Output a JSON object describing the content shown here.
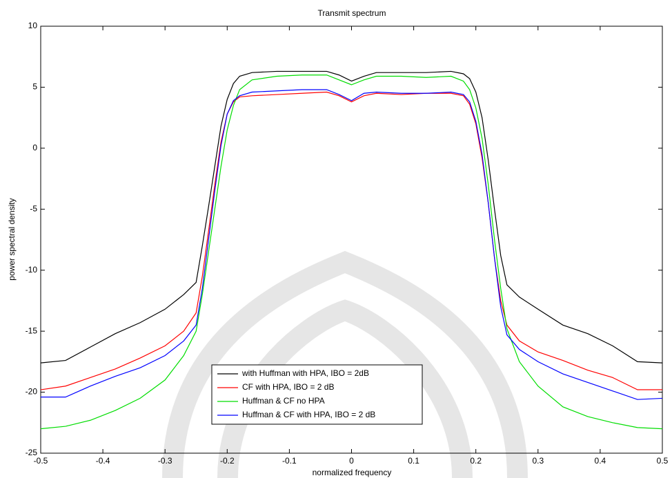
{
  "chart_data": {
    "type": "line",
    "title": "Transmit spectrum",
    "x_label": "normalized frequency",
    "y_label": "power spectral density",
    "x": [
      -0.5,
      -0.46,
      -0.42,
      -0.38,
      -0.34,
      -0.3,
      -0.27,
      -0.25,
      -0.24,
      -0.23,
      -0.22,
      -0.21,
      -0.2,
      -0.19,
      -0.18,
      -0.16,
      -0.12,
      -0.08,
      -0.04,
      -0.02,
      0,
      0.02,
      0.04,
      0.08,
      0.12,
      0.16,
      0.18,
      0.19,
      0.2,
      0.21,
      0.22,
      0.23,
      0.24,
      0.25,
      0.27,
      0.3,
      0.34,
      0.38,
      0.42,
      0.46,
      0.5
    ],
    "series": [
      {
        "name": "with Huffman with HPA, IBO = 2dB",
        "color": "#000000",
        "values": [
          -17.6,
          -17.4,
          -16.3,
          -15.2,
          -14.3,
          -13.2,
          -12.0,
          -11.0,
          -8.0,
          -4.8,
          -1.5,
          1.8,
          4.0,
          5.3,
          5.9,
          6.2,
          6.3,
          6.3,
          6.3,
          6.0,
          5.5,
          5.9,
          6.2,
          6.2,
          6.2,
          6.3,
          6.1,
          5.7,
          4.6,
          2.5,
          -1.0,
          -5.0,
          -8.8,
          -11.2,
          -12.2,
          -13.2,
          -14.5,
          -15.2,
          -16.2,
          -17.5,
          -17.6
        ]
      },
      {
        "name": "CF with HPA, IBO = 2 dB",
        "color": "#ff0000",
        "values": [
          -19.8,
          -19.5,
          -18.8,
          -18.1,
          -17.2,
          -16.2,
          -15.0,
          -13.5,
          -10.5,
          -6.8,
          -3.0,
          0.5,
          2.8,
          3.8,
          4.2,
          4.3,
          4.4,
          4.5,
          4.6,
          4.3,
          3.8,
          4.3,
          4.5,
          4.4,
          4.5,
          4.5,
          4.3,
          3.6,
          2.0,
          -0.8,
          -4.5,
          -9.0,
          -12.5,
          -14.5,
          -15.8,
          -16.7,
          -17.4,
          -18.2,
          -18.8,
          -19.8,
          -19.8
        ]
      },
      {
        "name": "Huffman & CF no HPA",
        "color": "#00dd00",
        "values": [
          -23.0,
          -22.8,
          -22.3,
          -21.5,
          -20.5,
          -19.0,
          -17.0,
          -15.0,
          -12.0,
          -8.5,
          -5.0,
          -1.5,
          1.5,
          3.5,
          4.8,
          5.6,
          5.9,
          6.0,
          6.0,
          5.6,
          5.2,
          5.6,
          5.9,
          5.9,
          5.8,
          5.9,
          5.5,
          4.8,
          3.3,
          0.8,
          -3.0,
          -7.5,
          -11.5,
          -14.8,
          -17.5,
          -19.5,
          -21.2,
          -22.0,
          -22.5,
          -22.9,
          -23.0
        ]
      },
      {
        "name": "Huffman & CF with HPA, IBO = 2 dB",
        "color": "#0000ff",
        "values": [
          -20.4,
          -20.4,
          -19.5,
          -18.7,
          -18.0,
          -17.0,
          -15.8,
          -14.5,
          -11.5,
          -7.5,
          -3.5,
          0.2,
          2.8,
          3.9,
          4.3,
          4.6,
          4.7,
          4.8,
          4.8,
          4.4,
          3.9,
          4.5,
          4.6,
          4.5,
          4.5,
          4.6,
          4.4,
          3.8,
          2.2,
          -0.5,
          -4.5,
          -9.0,
          -13.0,
          -15.3,
          -16.5,
          -17.5,
          -18.5,
          -19.2,
          -19.9,
          -20.6,
          -20.5
        ]
      }
    ],
    "xlim": [
      -0.5,
      0.5
    ],
    "ylim": [
      -25,
      10
    ],
    "xticks": [
      -0.5,
      -0.4,
      -0.3,
      -0.2,
      -0.1,
      0,
      0.1,
      0.2,
      0.3,
      0.4,
      0.5
    ],
    "yticks": [
      -25,
      -20,
      -15,
      -10,
      -5,
      0,
      5,
      10
    ],
    "grid": false,
    "legend_position": "south"
  }
}
